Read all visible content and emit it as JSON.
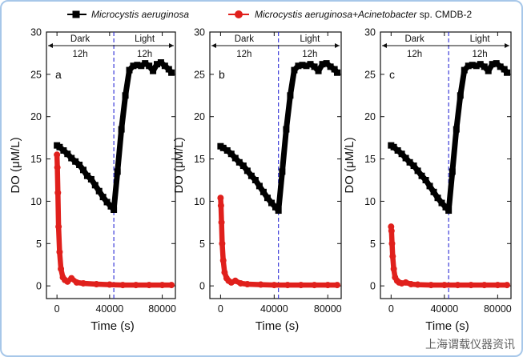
{
  "chart_data": {
    "type": "scatter",
    "legend": {
      "placement": "top",
      "entries": [
        {
          "italic": "Microcystis aeruginosa",
          "plain": "",
          "color": "#000000",
          "marker": "square"
        },
        {
          "italic": "Microcystis aeruginosa+Acinetobacter",
          "plain": " sp. CMDB-2",
          "color": "#e0201c",
          "marker": "circle"
        }
      ]
    },
    "xlabel": "Time (s)",
    "ylabel": "DO (μM/L)",
    "xlim": [
      -8000,
      90000
    ],
    "ylim": [
      -1.5,
      30
    ],
    "xticks": [
      "0",
      "40000",
      "80000"
    ],
    "yticks": [
      "0",
      "5",
      "10",
      "15",
      "20",
      "25",
      "30"
    ],
    "annotations": {
      "dark": "Dark",
      "light": "Light",
      "dark_hours": "12h",
      "light_hours": "12h",
      "divider_x": 43200
    },
    "panels": [
      {
        "tag": "a",
        "series": [
          {
            "name": "Microcystis aeruginosa",
            "x": [
              0,
              2000,
              5000,
              8000,
              11000,
              14000,
              17000,
              20000,
              23000,
              26000,
              29000,
              32000,
              35000,
              38000,
              41000,
              43200,
              46000,
              49000,
              52000,
              55000,
              58000,
              61000,
              64000,
              67000,
              70000,
              73000,
              76000,
              79000,
              82000,
              85000,
              87000
            ],
            "y": [
              16.6,
              16.4,
              16.0,
              15.6,
              15.1,
              14.7,
              14.3,
              13.7,
              13.0,
              12.6,
              11.9,
              11.2,
              10.5,
              9.9,
              9.4,
              9.0,
              13.5,
              18.5,
              22.5,
              25.5,
              26.0,
              26.1,
              26.0,
              26.3,
              26.0,
              25.4,
              26.2,
              26.4,
              26.0,
              25.6,
              25.2
            ]
          },
          {
            "name": "Microcystis aeruginosa+Acinetobacter sp. CMDB-2",
            "x": [
              0,
              300,
              700,
              1200,
              2000,
              3000,
              4500,
              6000,
              8000,
              11000,
              15000,
              20000,
              30000,
              40000,
              50000,
              60000,
              70000,
              80000,
              87000
            ],
            "y": [
              15.5,
              14.0,
              11.0,
              7.0,
              4.0,
              2.0,
              1.0,
              0.7,
              0.5,
              0.9,
              0.4,
              0.3,
              0.2,
              0.15,
              0.1,
              0.1,
              0.1,
              0.1,
              0.1
            ]
          }
        ]
      },
      {
        "tag": "b",
        "series": [
          {
            "name": "Microcystis aeruginosa",
            "x": [
              0,
              2000,
              5000,
              8000,
              11000,
              14000,
              17000,
              20000,
              23000,
              26000,
              29000,
              32000,
              35000,
              38000,
              41000,
              43200,
              46000,
              49000,
              52000,
              55000,
              58000,
              61000,
              64000,
              67000,
              70000,
              73000,
              76000,
              79000,
              82000,
              85000,
              87000
            ],
            "y": [
              16.5,
              16.3,
              16.0,
              15.6,
              15.1,
              14.6,
              14.2,
              13.6,
              13.0,
              12.5,
              11.8,
              11.1,
              10.4,
              9.8,
              9.3,
              8.9,
              13.5,
              18.5,
              22.5,
              25.5,
              26.0,
              26.1,
              26.0,
              26.2,
              25.9,
              25.4,
              26.2,
              26.3,
              25.9,
              25.6,
              25.2
            ]
          },
          {
            "name": "Microcystis aeruginosa+Acinetobacter sp. CMDB-2",
            "x": [
              0,
              300,
              700,
              1200,
              2000,
              3000,
              4500,
              6000,
              8000,
              11000,
              15000,
              20000,
              30000,
              40000,
              50000,
              60000,
              70000,
              80000,
              87000
            ],
            "y": [
              10.4,
              9.5,
              7.5,
              5.0,
              3.0,
              1.6,
              0.9,
              0.6,
              0.4,
              0.6,
              0.3,
              0.2,
              0.15,
              0.1,
              0.1,
              0.1,
              0.1,
              0.1,
              0.1
            ]
          }
        ]
      },
      {
        "tag": "c",
        "series": [
          {
            "name": "Microcystis aeruginosa",
            "x": [
              0,
              2000,
              5000,
              8000,
              11000,
              14000,
              17000,
              20000,
              23000,
              26000,
              29000,
              32000,
              35000,
              38000,
              41000,
              43200,
              46000,
              49000,
              52000,
              55000,
              58000,
              61000,
              64000,
              67000,
              70000,
              73000,
              76000,
              79000,
              82000,
              85000,
              87000
            ],
            "y": [
              16.6,
              16.4,
              16.0,
              15.6,
              15.1,
              14.6,
              14.2,
              13.6,
              13.0,
              12.5,
              11.8,
              11.1,
              10.4,
              9.8,
              9.3,
              8.9,
              13.5,
              18.5,
              22.5,
              25.5,
              26.0,
              26.1,
              26.0,
              26.2,
              25.9,
              25.4,
              26.2,
              26.3,
              25.9,
              25.6,
              25.2
            ]
          },
          {
            "name": "Microcystis aeruginosa+Acinetobacter sp. CMDB-2",
            "x": [
              0,
              300,
              700,
              1200,
              2000,
              3000,
              4500,
              6000,
              8000,
              11000,
              15000,
              20000,
              30000,
              40000,
              50000,
              60000,
              70000,
              80000,
              87000
            ],
            "y": [
              7.0,
              6.5,
              5.0,
              3.5,
              2.0,
              1.0,
              0.6,
              0.4,
              0.3,
              0.4,
              0.2,
              0.15,
              0.1,
              0.1,
              0.1,
              0.1,
              0.1,
              0.1,
              0.1
            ]
          }
        ]
      }
    ]
  },
  "watermark": "上海谓载仪器资讯"
}
